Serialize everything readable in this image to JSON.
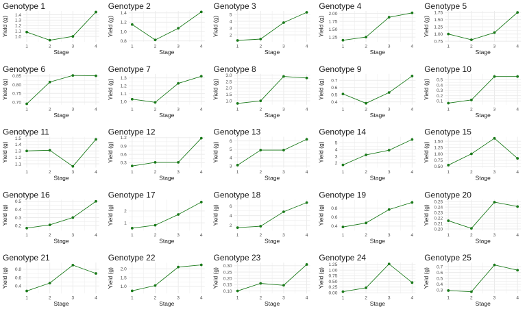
{
  "chart_data": {
    "type": "line",
    "x_label": "Stage",
    "y_label": "Yield (g)",
    "x": [
      1,
      2,
      3,
      4
    ],
    "colors": {
      "line": "#1a7a1a",
      "grid": "#ebebeb"
    },
    "panels": [
      {
        "title": "Genotype 1",
        "values": [
          1.08,
          0.93,
          1.0,
          1.45
        ],
        "yticks": [
          "1.0",
          "1.1",
          "1.2",
          "1.3",
          "1.4"
        ],
        "ylim": [
          0.9,
          1.47
        ]
      },
      {
        "title": "Genotype 2",
        "values": [
          1.15,
          0.82,
          1.07,
          1.42
        ],
        "yticks": [
          "0.8",
          "1.0",
          "1.2",
          "1.4"
        ],
        "ylim": [
          0.78,
          1.44
        ]
      },
      {
        "title": "Genotype 3",
        "values": [
          1.2,
          1.4,
          3.8,
          5.3
        ],
        "yticks": [
          "2",
          "3",
          "4",
          "5"
        ],
        "ylim": [
          1.0,
          5.5
        ]
      },
      {
        "title": "Genotype 4",
        "values": [
          1.15,
          1.25,
          1.88,
          2.02
        ],
        "yticks": [
          "1.25",
          "1.50",
          "1.75",
          "2.00"
        ],
        "ylim": [
          1.1,
          2.08
        ]
      },
      {
        "title": "Genotype 5",
        "values": [
          1.0,
          0.8,
          1.05,
          1.75
        ],
        "yticks": [
          "0.75",
          "1.00",
          "1.25",
          "1.50",
          "1.75"
        ],
        "ylim": [
          0.73,
          1.8
        ]
      },
      {
        "title": "Genotype 6",
        "values": [
          0.69,
          0.815,
          0.853,
          0.851
        ],
        "yticks": [
          "0.70",
          "0.75",
          "0.80",
          "0.85"
        ],
        "ylim": [
          0.685,
          0.862
        ]
      },
      {
        "title": "Genotype 7",
        "values": [
          1.03,
          0.99,
          1.23,
          1.32
        ],
        "yticks": [
          "1.0",
          "1.1",
          "1.2",
          "1.3"
        ],
        "ylim": [
          0.96,
          1.35
        ]
      },
      {
        "title": "Genotype 8",
        "values": [
          0.8,
          1.0,
          2.9,
          2.78
        ],
        "yticks": [
          "1.0",
          "1.5",
          "2.0",
          "2.5",
          "3.0"
        ],
        "ylim": [
          0.7,
          3.1
        ]
      },
      {
        "title": "Genotype 9",
        "values": [
          0.51,
          0.38,
          0.53,
          0.76
        ],
        "yticks": [
          "0.4",
          "0.5",
          "0.6",
          "0.7"
        ],
        "ylim": [
          0.36,
          0.79
        ]
      },
      {
        "title": "Genotype 10",
        "values": [
          0.06,
          0.12,
          0.56,
          0.56
        ],
        "yticks": [
          "0.1",
          "0.2",
          "0.3",
          "0.4",
          "0.5"
        ],
        "ylim": [
          0.03,
          0.61
        ]
      },
      {
        "title": "Genotype 11",
        "values": [
          1.3,
          1.31,
          1.06,
          1.48
        ],
        "yticks": [
          "1.1",
          "1.2",
          "1.3",
          "1.4",
          "1.5"
        ],
        "ylim": [
          1.04,
          1.52
        ]
      },
      {
        "title": "Genotype 12",
        "values": [
          0.18,
          0.31,
          0.31,
          1.18
        ],
        "yticks": [
          "0.3",
          "0.6",
          "0.9",
          "1.2"
        ],
        "ylim": [
          0.12,
          1.23
        ]
      },
      {
        "title": "Genotype 13",
        "values": [
          3.1,
          4.9,
          4.9,
          6.2
        ],
        "yticks": [
          "3",
          "4",
          "5",
          "6"
        ],
        "ylim": [
          2.8,
          6.5
        ]
      },
      {
        "title": "Genotype 14",
        "values": [
          1.7,
          3.2,
          3.9,
          5.5
        ],
        "yticks": [
          "2",
          "3",
          "4",
          "5"
        ],
        "ylim": [
          1.3,
          5.9
        ]
      },
      {
        "title": "Genotype 15",
        "values": [
          0.55,
          1.0,
          1.62,
          0.82
        ],
        "yticks": [
          "0.50",
          "0.75",
          "1.00",
          "1.25",
          "1.50"
        ],
        "ylim": [
          0.45,
          1.68
        ]
      },
      {
        "title": "Genotype 16",
        "values": [
          0.17,
          0.21,
          0.3,
          0.5
        ],
        "yticks": [
          "0.2",
          "0.3",
          "0.4",
          "0.5"
        ],
        "ylim": [
          0.14,
          0.52
        ]
      },
      {
        "title": "Genotype 17",
        "values": [
          0.55,
          0.8,
          1.7,
          2.75
        ],
        "yticks": [
          "1",
          "2"
        ],
        "ylim": [
          0.35,
          2.95
        ]
      },
      {
        "title": "Genotype 18",
        "values": [
          1.5,
          1.8,
          4.8,
          6.7
        ],
        "yticks": [
          "2",
          "4",
          "6"
        ],
        "ylim": [
          0.9,
          7.3
        ]
      },
      {
        "title": "Genotype 19",
        "values": [
          0.38,
          0.47,
          0.77,
          0.93
        ],
        "yticks": [
          "0.4",
          "0.6",
          "0.8"
        ],
        "ylim": [
          0.3,
          0.99
        ]
      },
      {
        "title": "Genotype 20",
        "values": [
          0.215,
          0.201,
          0.249,
          0.241
        ],
        "yticks": [
          "0.20",
          "0.21",
          "0.22",
          "0.23",
          "0.24",
          "0.25"
        ],
        "ylim": [
          0.197,
          0.2535
        ]
      },
      {
        "title": "Genotype 21",
        "values": [
          0.28,
          0.47,
          0.9,
          0.7
        ],
        "yticks": [
          "0.4",
          "0.6",
          "0.8"
        ],
        "ylim": [
          0.22,
          0.96
        ]
      },
      {
        "title": "Genotype 22",
        "values": [
          0.75,
          1.05,
          2.1,
          2.22
        ],
        "yticks": [
          "1.0",
          "1.5",
          "2.0"
        ],
        "ylim": [
          0.6,
          2.35
        ]
      },
      {
        "title": "Genotype 23",
        "values": [
          0.1,
          0.16,
          0.145,
          0.31
        ],
        "yticks": [
          "0.10",
          "0.15",
          "0.20",
          "0.25",
          "0.30"
        ],
        "ylim": [
          0.08,
          0.325
        ]
      },
      {
        "title": "Genotype 24",
        "values": [
          0.05,
          0.22,
          1.27,
          0.45
        ],
        "yticks": [
          "0.00",
          "0.25",
          "0.50",
          "0.75",
          "1.00",
          "1.25"
        ],
        "ylim": [
          -0.03,
          1.33
        ]
      },
      {
        "title": "Genotype 25",
        "values": [
          0.29,
          0.27,
          0.73,
          0.64
        ],
        "yticks": [
          "0.3",
          "0.4",
          "0.5",
          "0.6",
          "0.7"
        ],
        "ylim": [
          0.24,
          0.77
        ]
      }
    ]
  }
}
